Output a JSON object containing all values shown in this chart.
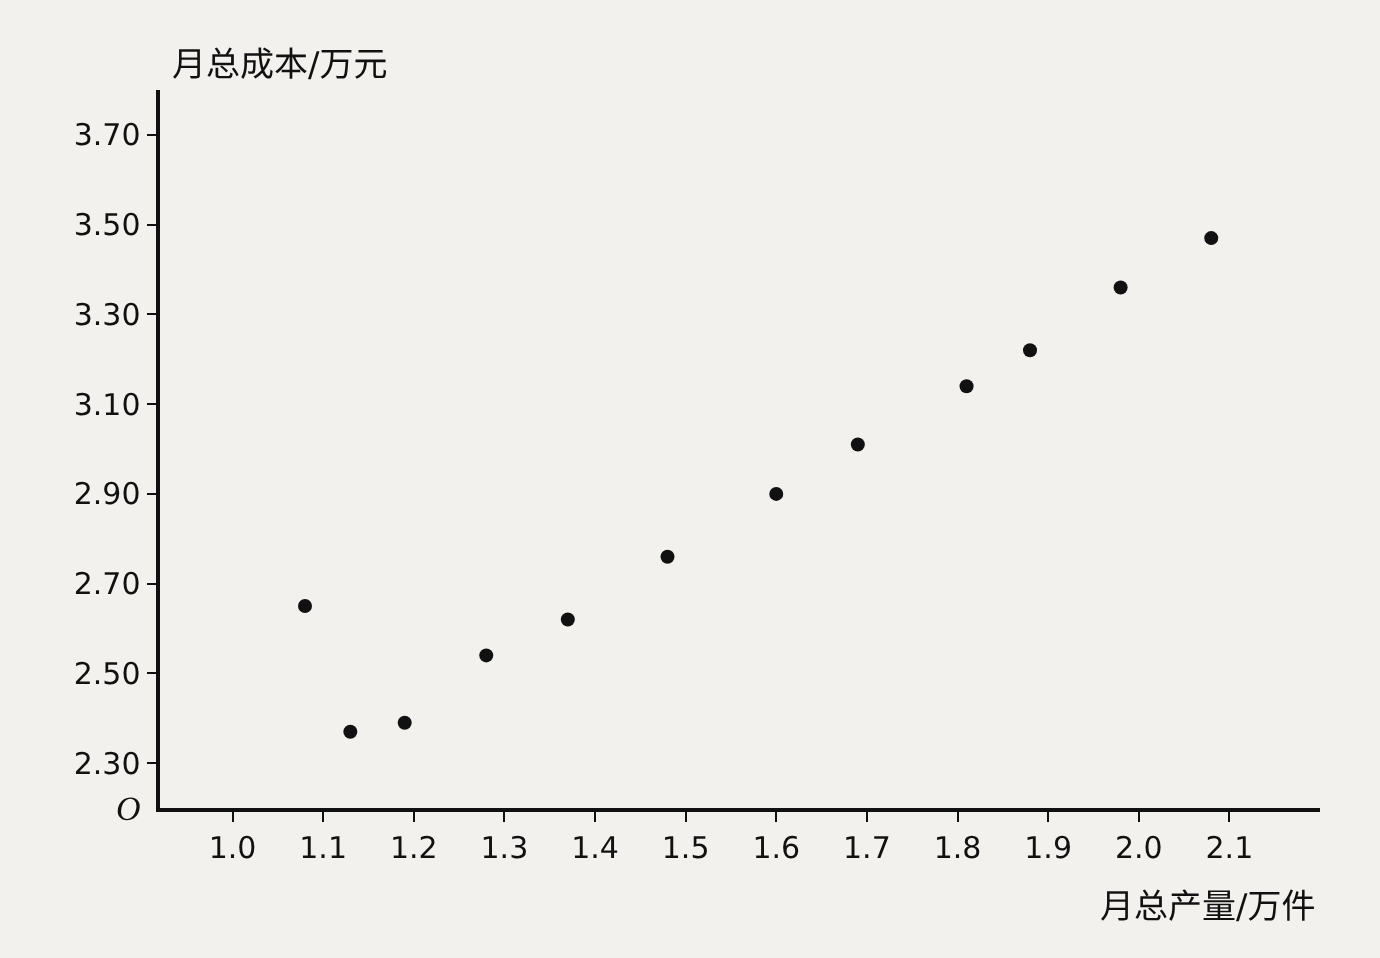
{
  "chart_data": {
    "type": "scatter",
    "xlabel": "月总产量/万件",
    "ylabel": "月总成本/万元",
    "annotations": [
      "O"
    ],
    "x": [
      1.08,
      1.13,
      1.19,
      1.28,
      1.37,
      1.48,
      1.6,
      1.69,
      1.81,
      1.88,
      1.98,
      2.08
    ],
    "series": [
      {
        "color": "#111111",
        "values": [
          2.65,
          2.37,
          2.39,
          2.54,
          2.62,
          2.76,
          2.9,
          3.01,
          3.14,
          3.22,
          3.36,
          3.47
        ]
      }
    ],
    "marker": "circle",
    "grid": false,
    "xlim": [
      0.92,
      2.2
    ],
    "ylim": [
      2.2,
      3.8
    ],
    "xticks": [
      {
        "value": 1.0,
        "label": "1.0"
      },
      {
        "value": 1.1,
        "label": "1.1"
      },
      {
        "value": 1.2,
        "label": "1.2"
      },
      {
        "value": 1.3,
        "label": "1.3"
      },
      {
        "value": 1.4,
        "label": "1.4"
      },
      {
        "value": 1.5,
        "label": "1.5"
      },
      {
        "value": 1.6,
        "label": "1.6"
      },
      {
        "value": 1.7,
        "label": "1.7"
      },
      {
        "value": 1.8,
        "label": "1.8"
      },
      {
        "value": 1.9,
        "label": "1.9"
      },
      {
        "value": 2.0,
        "label": "2.0"
      },
      {
        "value": 2.1,
        "label": "2.1"
      }
    ],
    "yticks": [
      {
        "value": 2.3,
        "label": "2.30"
      },
      {
        "value": 2.5,
        "label": "2.50"
      },
      {
        "value": 2.7,
        "label": "2.70"
      },
      {
        "value": 2.9,
        "label": "2.90"
      },
      {
        "value": 3.1,
        "label": "3.10"
      },
      {
        "value": 3.3,
        "label": "3.30"
      },
      {
        "value": 3.5,
        "label": "3.50"
      },
      {
        "value": 3.7,
        "label": "3.70"
      }
    ]
  }
}
